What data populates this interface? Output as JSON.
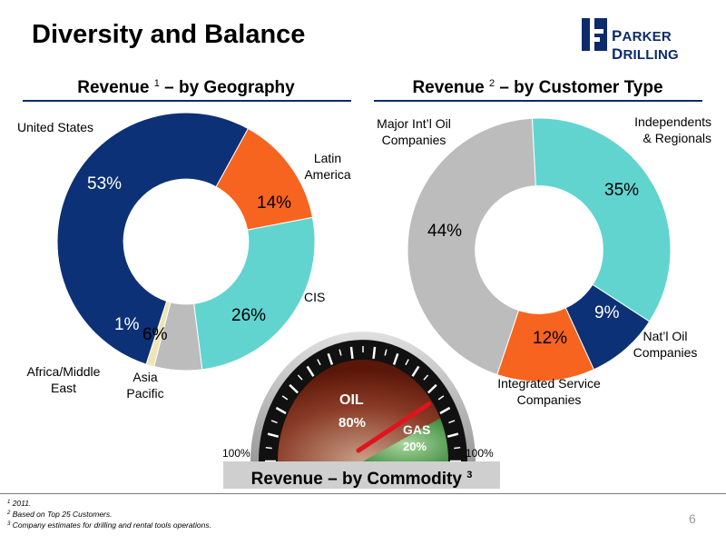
{
  "title": "Diversity and Balance",
  "logo": {
    "name": "PARKER DRILLING",
    "first": "P",
    "first_rest": "ARKER",
    "second": "D",
    "second_rest": "RILLING"
  },
  "colors": {
    "navy": "#0c3176",
    "orange": "#f7641f",
    "teal": "#61d4cf",
    "gray": "#bcbcbc",
    "beige": "#efe5b4"
  },
  "geography": {
    "title_pre": "Revenue ",
    "sup": "1",
    "title_post": " – by Geography",
    "labels": {
      "us": "United States",
      "latin": [
        "Latin",
        "America"
      ],
      "cis": "CIS",
      "asia": [
        "Asia",
        "Pacific"
      ],
      "africa": [
        "Africa/Middle",
        "East"
      ]
    }
  },
  "customer": {
    "title_pre": "Revenue ",
    "sup": "2",
    "title_post": " – by Customer Type",
    "labels": {
      "independents": [
        "Independents",
        "& Regionals"
      ],
      "natl": [
        "Nat’l Oil",
        "Companies"
      ],
      "integrated": [
        "Integrated Service",
        "Companies"
      ],
      "major": [
        "Major Int’l Oil",
        "Companies"
      ]
    }
  },
  "commodity": {
    "title_pre": "Revenue – by Commodity ",
    "sup": "3",
    "oil_label": "OIL",
    "oil_pct": "80%",
    "gas_label": "GAS",
    "gas_pct": "20%",
    "left_scale": "100%",
    "right_scale": "100%"
  },
  "chart_data": [
    {
      "type": "pie",
      "title": "Revenue 1 – by Geography",
      "categories": [
        "United States",
        "Latin America",
        "CIS",
        "Asia Pacific",
        "Africa/Middle East"
      ],
      "values": [
        53,
        14,
        26,
        6,
        1
      ],
      "value_labels": [
        "53%",
        "14%",
        "26%",
        "6%",
        "1%"
      ],
      "colors": [
        "#0c3176",
        "#f7641f",
        "#61d4cf",
        "#bcbcbc",
        "#efe5b4"
      ]
    },
    {
      "type": "pie",
      "title": "Revenue 2 – by Customer Type",
      "categories": [
        "Independents & Regionals",
        "Nat’l Oil Companies",
        "Integrated Service Companies",
        "Major Int’l Oil Companies"
      ],
      "values": [
        35,
        9,
        12,
        44
      ],
      "value_labels": [
        "35%",
        "9%",
        "12%",
        "44%"
      ],
      "colors": [
        "#61d4cf",
        "#0c3176",
        "#f7641f",
        "#bcbcbc"
      ]
    },
    {
      "type": "gauge",
      "title": "Revenue – by Commodity 3",
      "categories": [
        "OIL",
        "GAS"
      ],
      "values": [
        80,
        20
      ],
      "value_labels": [
        "80%",
        "20%"
      ]
    }
  ],
  "footnotes": [
    {
      "sup": "1",
      "text": " 2011."
    },
    {
      "sup": "2",
      "text": " Based on Top 25 Customers."
    },
    {
      "sup": "3",
      "text": " Company estimates for drilling and rental tools operations."
    }
  ],
  "page_number": "6"
}
